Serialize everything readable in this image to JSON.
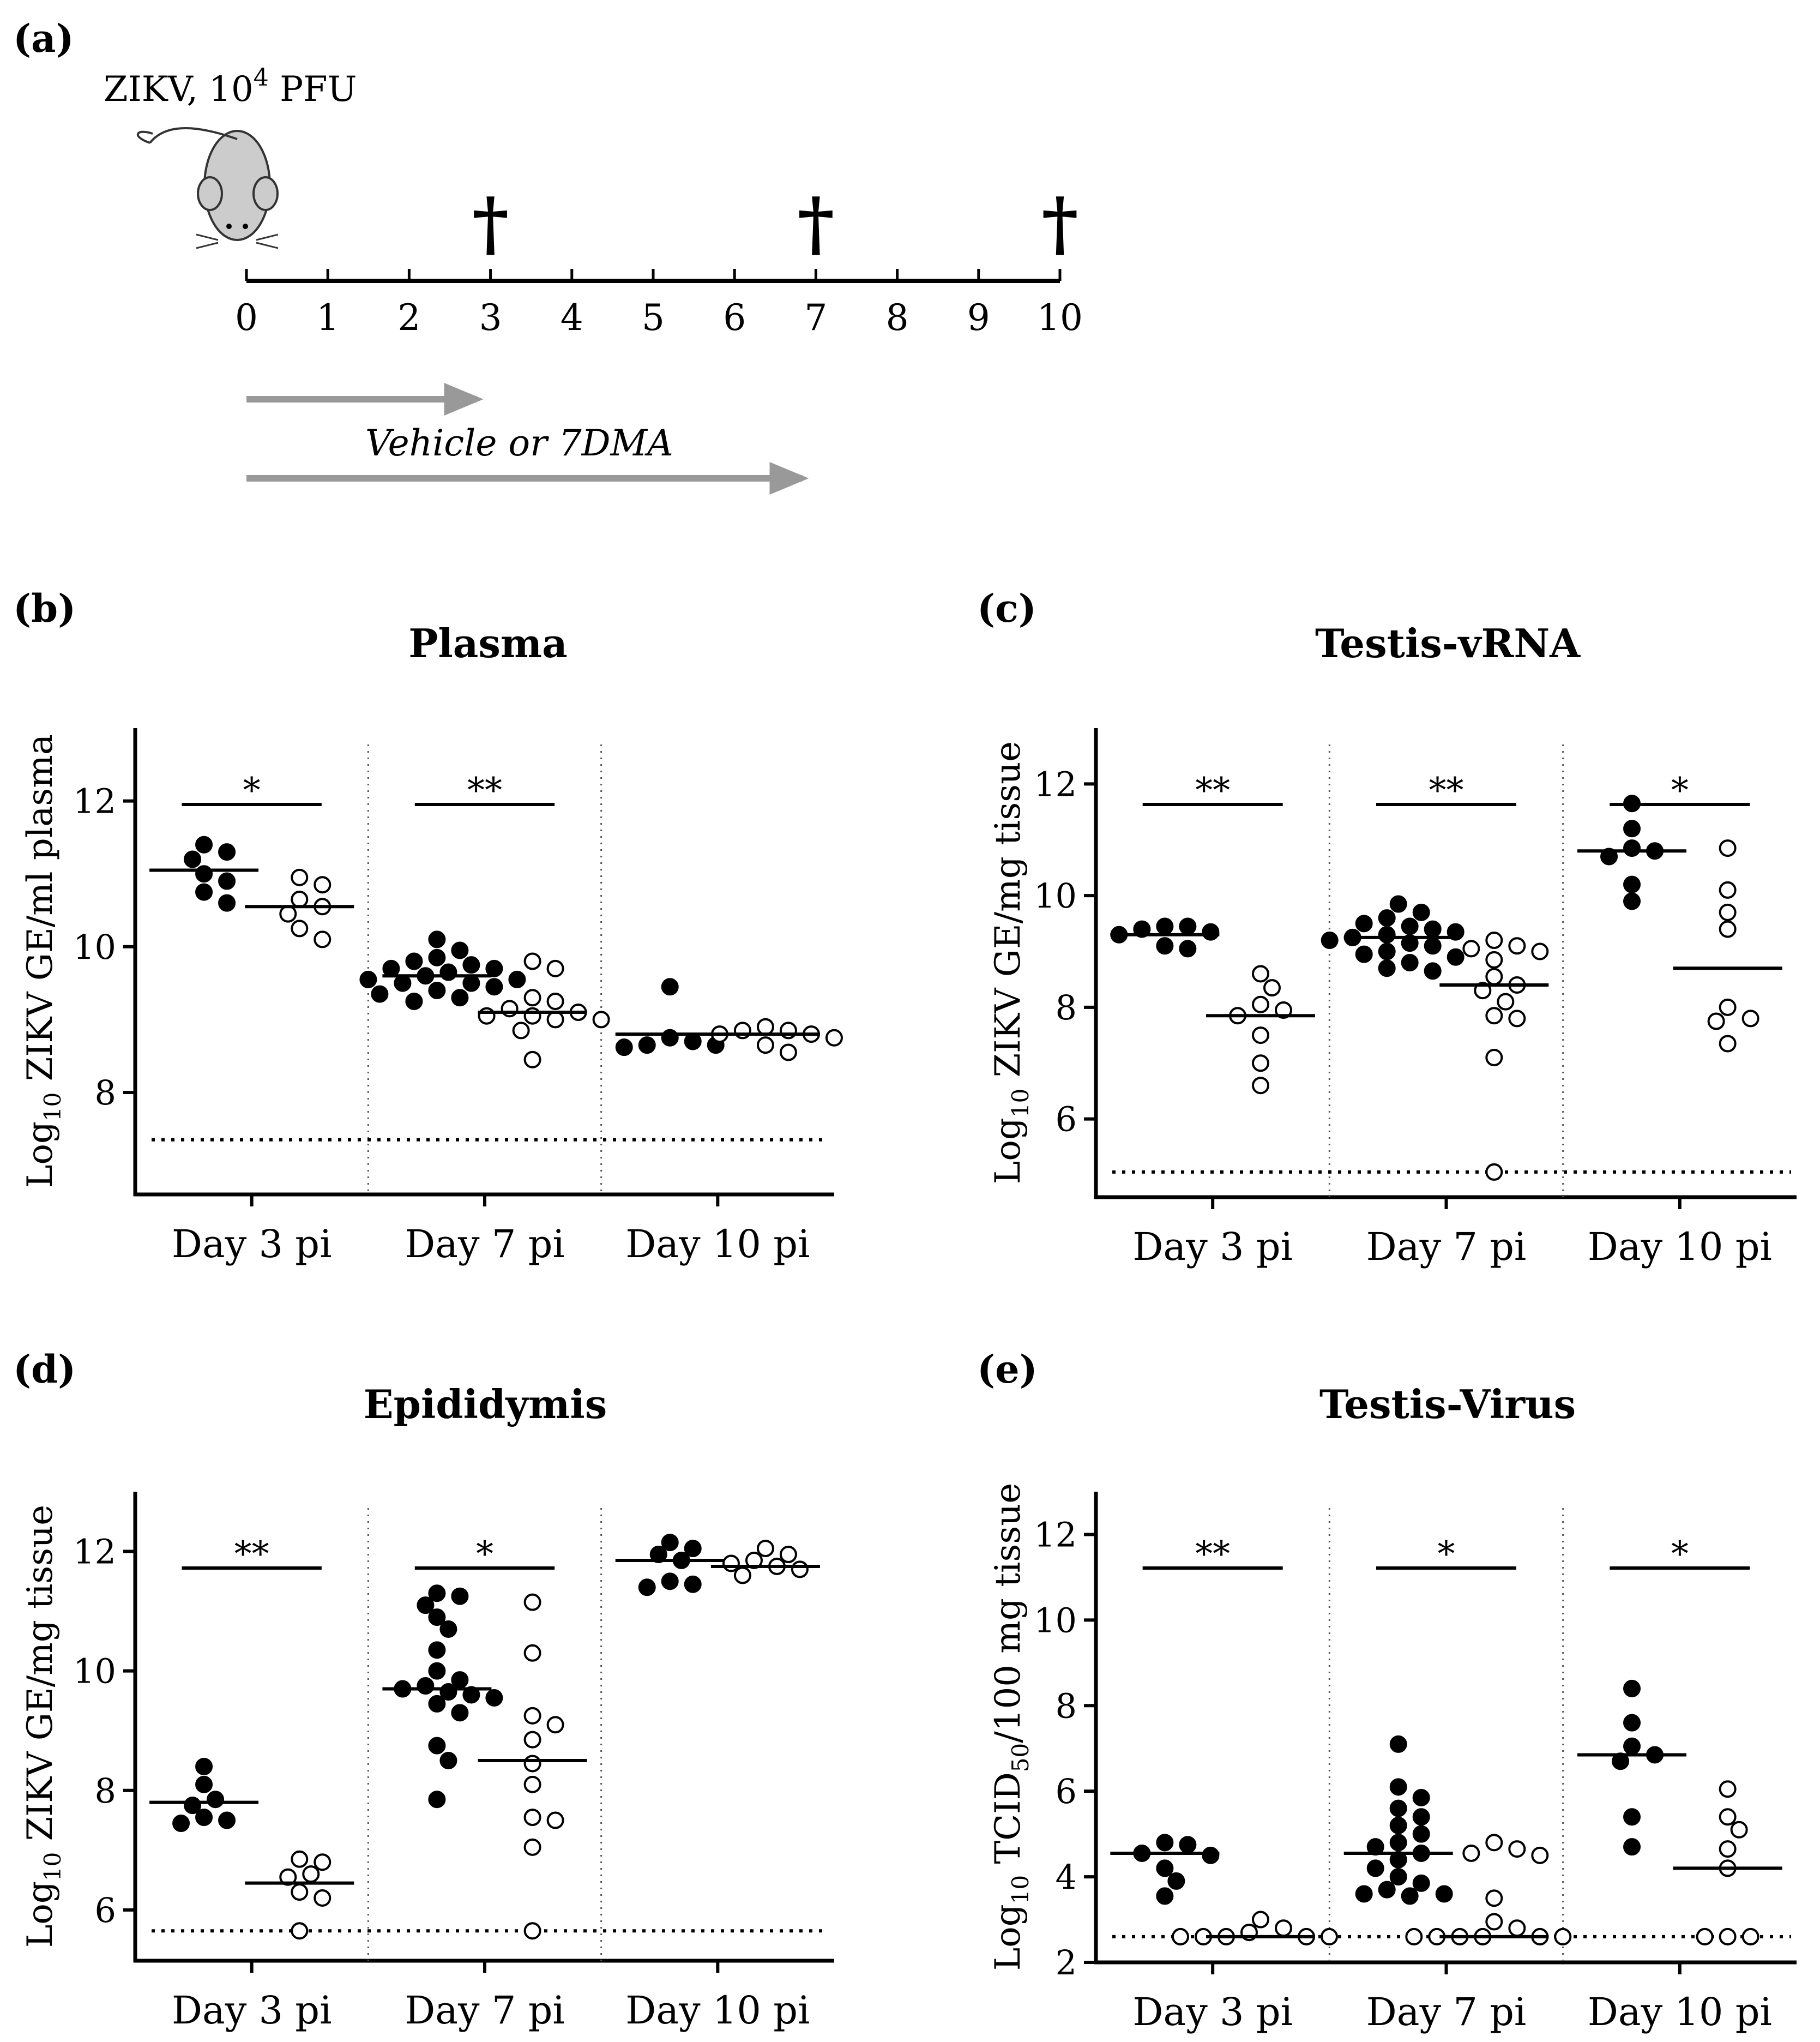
{
  "figure": {
    "panel_a": {
      "label": "(a)",
      "infection_label": "ZIKV, 10",
      "infection_sup": "4",
      "infection_unit": " PFU",
      "treatment_label": "Vehicle or 7DMA",
      "timeline_ticks": [
        "0",
        "1",
        "2",
        "3",
        "4",
        "5",
        "6",
        "7",
        "8",
        "9",
        "10"
      ],
      "sacrifice_days": [
        3,
        7,
        10
      ],
      "sacrifice_symbol": "†",
      "treatment_arrows_end_day": [
        3,
        7
      ]
    }
  },
  "chart_data": [
    {
      "type": "scatter",
      "panel_label": "(b)",
      "title": "Plasma",
      "ylabel_prefix": "Log",
      "ylabel_sub": "10",
      "ylabel_suffix": " ZIKV GE/ml plasma",
      "ylim": [
        6.6,
        13.0
      ],
      "yticks": [
        "8",
        "10",
        "12"
      ],
      "categories": [
        "Day 3 pi",
        "Day 7 pi",
        "Day 10 pi"
      ],
      "detection_limit": 7.35,
      "series": [
        {
          "name": "Vehicle",
          "marker": "filled",
          "groups": [
            [
              11.4,
              11.3,
              11.2,
              11.0,
              10.9,
              10.75,
              10.6
            ],
            [
              10.1,
              9.95,
              9.85,
              9.8,
              9.75,
              9.7,
              9.7,
              9.65,
              9.6,
              9.55,
              9.55,
              9.5,
              9.5,
              9.45,
              9.4,
              9.35,
              9.3,
              9.25
            ],
            [
              9.45,
              8.75,
              8.7,
              8.65,
              8.65,
              8.62
            ]
          ],
          "medians": [
            11.05,
            9.6,
            8.8
          ]
        },
        {
          "name": "7DMA",
          "marker": "open",
          "groups": [
            [
              10.95,
              10.85,
              10.65,
              10.55,
              10.45,
              10.25,
              10.1
            ],
            [
              9.8,
              9.7,
              9.3,
              9.25,
              9.15,
              9.1,
              9.05,
              9.05,
              9.0,
              9.0,
              8.85,
              8.45
            ],
            [
              8.9,
              8.85,
              8.85,
              8.8,
              8.8,
              8.75,
              8.65,
              8.55
            ]
          ],
          "medians": [
            10.55,
            9.1,
            8.8
          ]
        }
      ],
      "significance": [
        "*",
        "**",
        ""
      ]
    },
    {
      "type": "scatter",
      "panel_label": "(c)",
      "title": "Testis-vRNA",
      "ylabel_prefix": "Log",
      "ylabel_sub": "10",
      "ylabel_suffix": " ZIKV GE/mg tissue",
      "ylim": [
        4.6,
        13.0
      ],
      "yticks": [
        "6",
        "8",
        "10",
        "12"
      ],
      "categories": [
        "Day 3 pi",
        "Day 7 pi",
        "Day 10 pi"
      ],
      "detection_limit": 5.05,
      "series": [
        {
          "name": "Vehicle",
          "marker": "filled",
          "groups": [
            [
              9.45,
              9.45,
              9.4,
              9.35,
              9.3,
              9.1,
              9.05
            ],
            [
              9.85,
              9.7,
              9.6,
              9.5,
              9.45,
              9.4,
              9.35,
              9.3,
              9.25,
              9.2,
              9.15,
              9.1,
              9.0,
              8.95,
              8.9,
              8.8,
              8.7,
              8.65
            ],
            [
              11.65,
              11.2,
              10.85,
              10.8,
              10.7,
              10.2,
              9.9
            ]
          ],
          "medians": [
            9.3,
            9.25,
            10.8
          ]
        },
        {
          "name": "7DMA",
          "marker": "open",
          "groups": [
            [
              8.6,
              8.35,
              8.05,
              7.95,
              7.85,
              7.5,
              7.0,
              6.6
            ],
            [
              9.2,
              9.1,
              9.05,
              9.0,
              8.85,
              8.55,
              8.4,
              8.3,
              8.1,
              7.85,
              7.8,
              7.1,
              5.05
            ],
            [
              10.85,
              10.1,
              9.7,
              9.4,
              8.0,
              7.8,
              7.75,
              7.35
            ]
          ],
          "medians": [
            7.85,
            8.4,
            8.7
          ]
        }
      ],
      "significance": [
        "**",
        "**",
        "*"
      ]
    },
    {
      "type": "scatter",
      "panel_label": "(d)",
      "title": "Epididymis",
      "ylabel_prefix": "Log",
      "ylabel_sub": "10",
      "ylabel_suffix": " ZIKV GE/mg tissue",
      "ylim": [
        5.15,
        13.0
      ],
      "yticks": [
        "6",
        "8",
        "10",
        "12"
      ],
      "categories": [
        "Day 3 pi",
        "Day 7 pi",
        "Day 10 pi"
      ],
      "detection_limit": 5.65,
      "series": [
        {
          "name": "Vehicle",
          "marker": "filled",
          "groups": [
            [
              8.4,
              8.1,
              7.85,
              7.75,
              7.55,
              7.5,
              7.45
            ],
            [
              11.3,
              11.25,
              11.1,
              10.9,
              10.7,
              10.35,
              10.0,
              9.85,
              9.75,
              9.7,
              9.65,
              9.6,
              9.55,
              9.45,
              9.3,
              8.75,
              8.5,
              7.85
            ],
            [
              12.15,
              12.05,
              11.95,
              11.85,
              11.5,
              11.45,
              11.4
            ]
          ],
          "medians": [
            7.8,
            9.7,
            11.85
          ]
        },
        {
          "name": "7DMA",
          "marker": "open",
          "groups": [
            [
              6.85,
              6.8,
              6.6,
              6.55,
              6.3,
              6.2,
              5.65
            ],
            [
              11.15,
              10.3,
              9.25,
              9.1,
              8.85,
              8.45,
              8.1,
              7.55,
              7.5,
              7.05,
              5.65
            ],
            [
              12.05,
              11.95,
              11.85,
              11.8,
              11.75,
              11.7,
              11.6
            ]
          ],
          "medians": [
            6.45,
            8.5,
            11.75
          ]
        }
      ],
      "significance": [
        "**",
        "*",
        ""
      ]
    },
    {
      "type": "scatter",
      "panel_label": "(e)",
      "title": "Testis-Virus",
      "ylabel_prefix": "Log",
      "ylabel_sub": "10",
      "ylabel_mid": " TCID",
      "ylabel_sub2": "50",
      "ylabel_suffix": "/100 mg tissue",
      "ylim": [
        2.0,
        13.0
      ],
      "yticks": [
        "2",
        "4",
        "6",
        "8",
        "10",
        "12"
      ],
      "categories": [
        "Day 3 pi",
        "Day 7 pi",
        "Day 10 pi"
      ],
      "detection_limit": 2.6,
      "series": [
        {
          "name": "Vehicle",
          "marker": "filled",
          "groups": [
            [
              4.8,
              4.75,
              4.55,
              4.5,
              4.2,
              3.9,
              3.55
            ],
            [
              7.1,
              6.1,
              5.85,
              5.6,
              5.4,
              5.2,
              5.0,
              4.8,
              4.7,
              4.55,
              4.4,
              4.2,
              4.0,
              3.85,
              3.7,
              3.6,
              3.6,
              3.55
            ],
            [
              8.4,
              7.6,
              7.05,
              6.85,
              6.7,
              5.4,
              4.7
            ]
          ],
          "medians": [
            4.55,
            4.55,
            6.85
          ]
        },
        {
          "name": "7DMA",
          "marker": "open",
          "groups": [
            [
              3.0,
              2.8,
              2.7,
              2.6,
              2.6,
              2.6,
              2.6,
              2.6
            ],
            [
              4.8,
              4.65,
              4.55,
              4.5,
              3.5,
              2.95,
              2.8,
              2.6,
              2.6,
              2.6,
              2.6,
              2.6,
              2.6
            ],
            [
              6.05,
              5.4,
              5.1,
              4.65,
              4.2,
              2.6,
              2.6,
              2.6
            ]
          ],
          "medians": [
            2.6,
            2.6,
            4.2
          ]
        }
      ],
      "significance": [
        "**",
        "*",
        "*"
      ]
    }
  ]
}
